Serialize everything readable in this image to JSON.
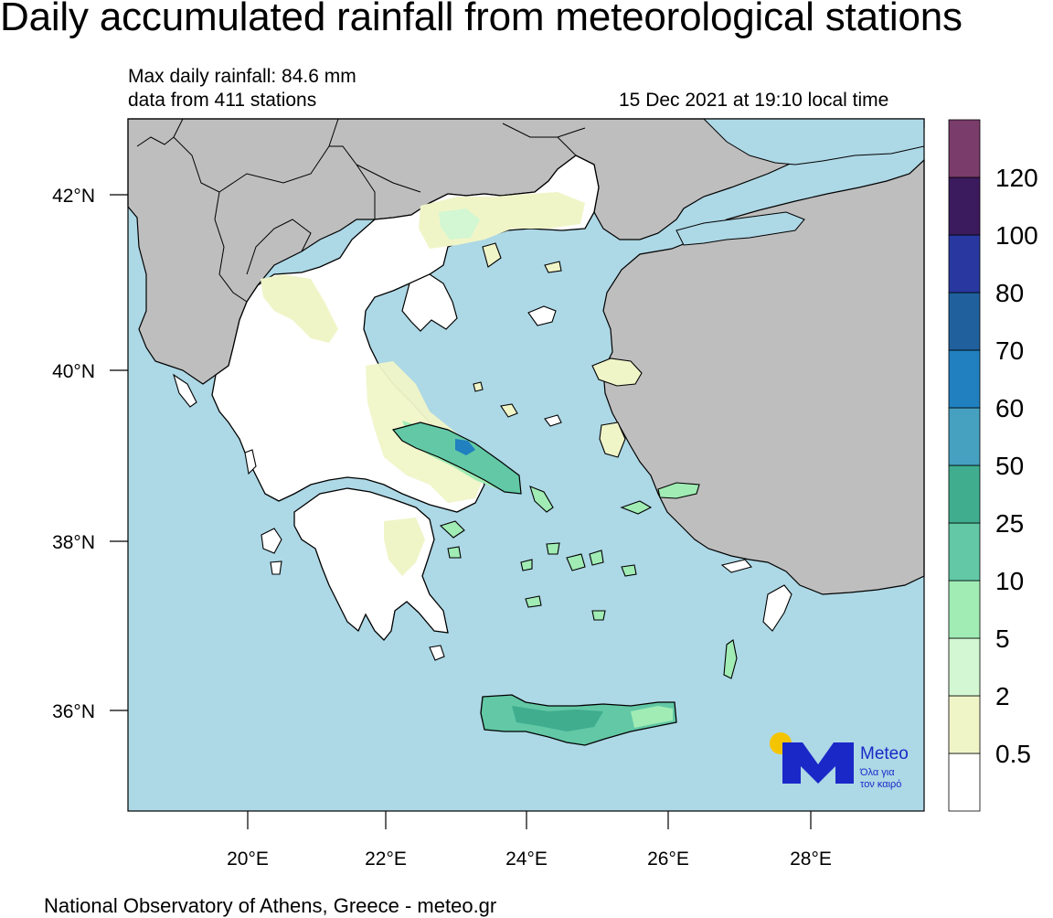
{
  "title": "Daily accumulated rainfall from meteorological stations",
  "info": {
    "max_rainfall": "Max daily rainfall: 84.6 mm",
    "stations": "data from 411 stations",
    "timestamp": "15 Dec 2021 at 19:10 local time"
  },
  "axes": {
    "lat_labels": [
      "42°N",
      "40°N",
      "38°N",
      "36°N"
    ],
    "lon_labels": [
      "20°E",
      "22°E",
      "24°E",
      "26°E",
      "28°E"
    ]
  },
  "legend": {
    "labels": [
      "0.5",
      "2",
      "5",
      "10",
      "25",
      "50",
      "60",
      "70",
      "80",
      "100",
      "120"
    ],
    "colors": [
      "#ffffff",
      "#f0f5c8",
      "#d2f7d2",
      "#a0ecb4",
      "#62c8a6",
      "#3fad8e",
      "#46a0c0",
      "#2080c0",
      "#20609c",
      "#2838a0",
      "#3c1a5e",
      "#7a3c6a"
    ]
  },
  "logo": {
    "brand": "Meteo",
    "tagline_1": "Όλα για",
    "tagline_2": "τον καιρό",
    "colors": {
      "sun": "#f5c400",
      "mark": "#1a28c8"
    }
  },
  "footer": "National Observatory of Athens, Greece - meteo.gr",
  "colors": {
    "sea": "#add8e6",
    "land_foreign": "#bebebe",
    "land_greece": "#ffffff"
  }
}
